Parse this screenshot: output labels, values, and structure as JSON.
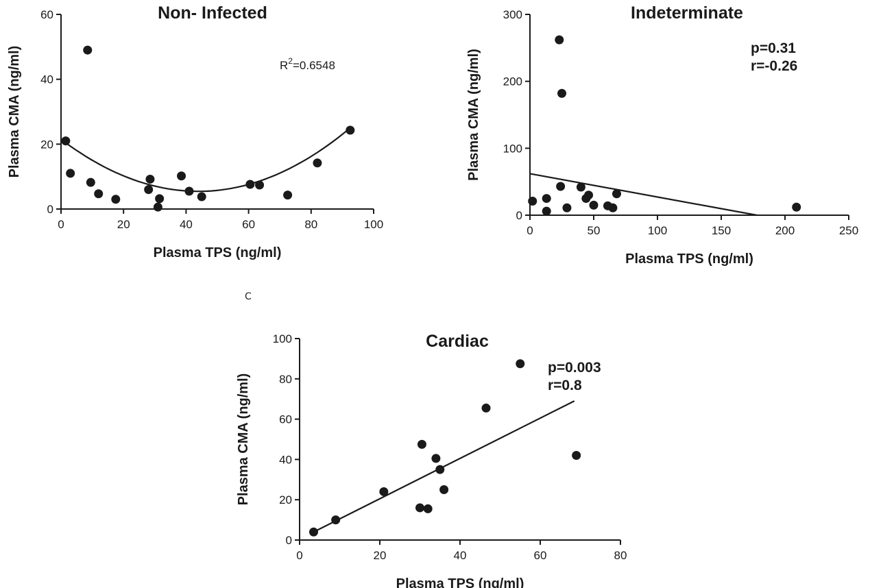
{
  "panel_label": "C",
  "chart_data": [
    {
      "type": "scatter",
      "title": "Non- Infected",
      "xlabel": "Plasma TPS (ng/ml)",
      "ylabel": "Plasma CMA (ng/ml)",
      "xlim": [
        0,
        100
      ],
      "ylim": [
        0,
        60
      ],
      "xticks": [
        0,
        20,
        40,
        60,
        80,
        100
      ],
      "yticks": [
        0,
        20,
        40,
        60
      ],
      "annotations": [
        {
          "text": "R",
          "superscript": "2",
          "suffix": "=0.6548"
        }
      ],
      "points": [
        {
          "x": 1.5,
          "y": 21
        },
        {
          "x": 3,
          "y": 11
        },
        {
          "x": 8.5,
          "y": 49
        },
        {
          "x": 9.5,
          "y": 8.2
        },
        {
          "x": 12,
          "y": 4.7
        },
        {
          "x": 17.5,
          "y": 3
        },
        {
          "x": 28,
          "y": 6
        },
        {
          "x": 28.5,
          "y": 9.2
        },
        {
          "x": 31,
          "y": 0.6
        },
        {
          "x": 31.5,
          "y": 3.2
        },
        {
          "x": 38.5,
          "y": 10.2
        },
        {
          "x": 41,
          "y": 5.5
        },
        {
          "x": 45,
          "y": 3.8
        },
        {
          "x": 60.5,
          "y": 7.6
        },
        {
          "x": 63.5,
          "y": 7.4
        },
        {
          "x": 72.5,
          "y": 4.3
        },
        {
          "x": 82,
          "y": 14.2
        },
        {
          "x": 92.5,
          "y": 24.3
        }
      ],
      "fit": {
        "kind": "quadratic",
        "a": 0.0083,
        "b": -0.73,
        "c": 21.5,
        "x_range": [
          0,
          93
        ]
      }
    },
    {
      "type": "scatter",
      "title": "Indeterminate",
      "xlabel": "Plasma TPS (ng/ml)",
      "ylabel": "Plasma CMA (ng/ml)",
      "xlim": [
        0,
        250
      ],
      "ylim": [
        0,
        300
      ],
      "xticks": [
        0,
        50,
        100,
        150,
        200,
        250
      ],
      "yticks": [
        0,
        100,
        200,
        300
      ],
      "annotations": [
        {
          "text": "p=0.31"
        },
        {
          "text": "r=-0.26"
        }
      ],
      "points": [
        {
          "x": 2,
          "y": 21
        },
        {
          "x": 13,
          "y": 25
        },
        {
          "x": 13,
          "y": 6
        },
        {
          "x": 23,
          "y": 262
        },
        {
          "x": 24,
          "y": 43
        },
        {
          "x": 25,
          "y": 182
        },
        {
          "x": 29,
          "y": 11
        },
        {
          "x": 40,
          "y": 42
        },
        {
          "x": 44,
          "y": 25
        },
        {
          "x": 46,
          "y": 30
        },
        {
          "x": 50,
          "y": 15
        },
        {
          "x": 61,
          "y": 14
        },
        {
          "x": 65,
          "y": 11
        },
        {
          "x": 68,
          "y": 32
        },
        {
          "x": 209,
          "y": 12
        }
      ],
      "fit": {
        "kind": "linear",
        "x1": 0,
        "y1": 62,
        "x2": 178,
        "y2": 0
      }
    },
    {
      "type": "scatter",
      "title": "Cardiac",
      "xlabel": "Plasma TPS (ng/ml)",
      "ylabel": "Plasma CMA (ng/ml)",
      "xlim": [
        0,
        80
      ],
      "ylim": [
        0,
        100
      ],
      "xticks": [
        0,
        20,
        40,
        60,
        80
      ],
      "yticks": [
        0,
        20,
        40,
        60,
        80,
        100
      ],
      "annotations": [
        {
          "text": "p=0.003"
        },
        {
          "text": "r=0.8"
        }
      ],
      "points": [
        {
          "x": 3.5,
          "y": 4
        },
        {
          "x": 9,
          "y": 10
        },
        {
          "x": 21,
          "y": 24
        },
        {
          "x": 30,
          "y": 16
        },
        {
          "x": 30.5,
          "y": 47.5
        },
        {
          "x": 32,
          "y": 15.5
        },
        {
          "x": 34,
          "y": 40.5
        },
        {
          "x": 35,
          "y": 35
        },
        {
          "x": 36,
          "y": 25
        },
        {
          "x": 46.5,
          "y": 65.5
        },
        {
          "x": 55,
          "y": 87.5
        },
        {
          "x": 69,
          "y": 42
        }
      ],
      "fit": {
        "kind": "linear",
        "x1": 3.5,
        "y1": 4,
        "x2": 68.5,
        "y2": 69
      }
    }
  ]
}
